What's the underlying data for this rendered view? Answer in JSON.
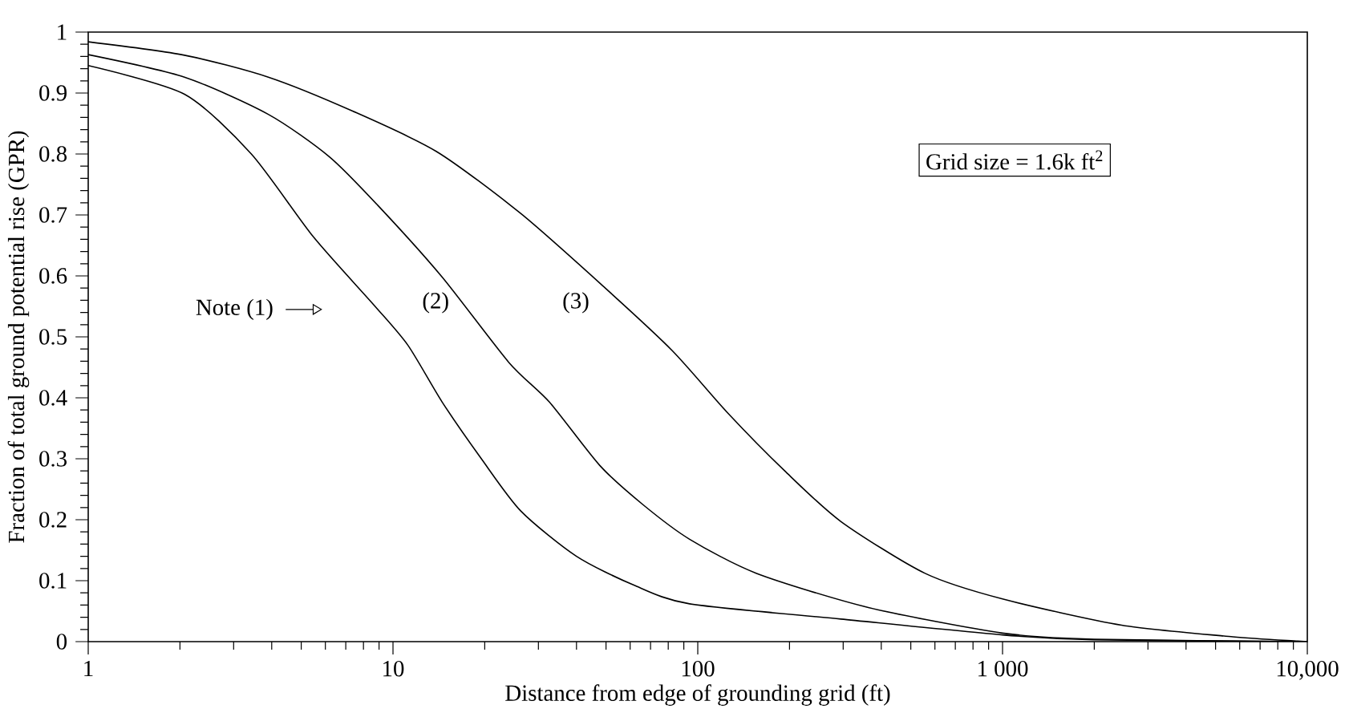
{
  "chart_data": {
    "type": "line",
    "xlabel": "Distance from edge of grounding grid (ft)",
    "ylabel": "Fraction of total ground potential rise (GPR)",
    "log": "x",
    "xlim": [
      1,
      10000
    ],
    "xticks": [
      1,
      10,
      100,
      {
        "value": 1000,
        "label": "1 000"
      },
      {
        "value": 10000,
        "label": "10,000"
      }
    ],
    "ylim": [
      0,
      1
    ],
    "yticks": [
      0,
      0.1,
      0.2,
      0.3,
      0.4,
      0.5,
      0.6,
      0.7,
      0.8,
      0.9,
      1
    ],
    "grid": false,
    "series": [
      {
        "color": "#000000",
        "x": [
          1,
          2.07,
          3.43,
          5.48,
          8.7,
          11.2,
          14.5,
          19.5,
          26.3,
          40,
          61.5,
          94,
          295,
          1000,
          2000,
          10000
        ],
        "values": [
          0.945,
          0.898,
          0.8,
          0.664,
          0.551,
          0.486,
          0.393,
          0.3,
          0.214,
          0.14,
          0.093,
          0.062,
          0.037,
          0.011,
          0.003,
          0
        ]
      },
      {
        "color": "#000000",
        "x": [
          1,
          2.07,
          3.9,
          6.2,
          9.1,
          14.5,
          24,
          32.6,
          47.7,
          66,
          94,
          156,
          363,
          1000,
          2000,
          10000
        ],
        "values": [
          0.963,
          0.926,
          0.865,
          0.795,
          0.711,
          0.598,
          0.458,
          0.393,
          0.289,
          0.225,
          0.168,
          0.112,
          0.056,
          0.014,
          0.004,
          0
        ]
      },
      {
        "color": "#000000",
        "x": [
          1,
          2.07,
          3.9,
          7.4,
          13.9,
          26.3,
          49.7,
          82.6,
          126,
          193,
          295,
          557,
          1000,
          2460,
          5700,
          9300,
          10000
        ],
        "values": [
          0.984,
          0.962,
          0.926,
          0.87,
          0.804,
          0.702,
          0.58,
          0.477,
          0.374,
          0.28,
          0.197,
          0.112,
          0.07,
          0.027,
          0.008,
          0.001,
          0
        ]
      }
    ],
    "annotations": [
      "Note (1)",
      "(2)",
      "(3)",
      "Grid size = 1.6k ft$^{2}$"
    ]
  }
}
